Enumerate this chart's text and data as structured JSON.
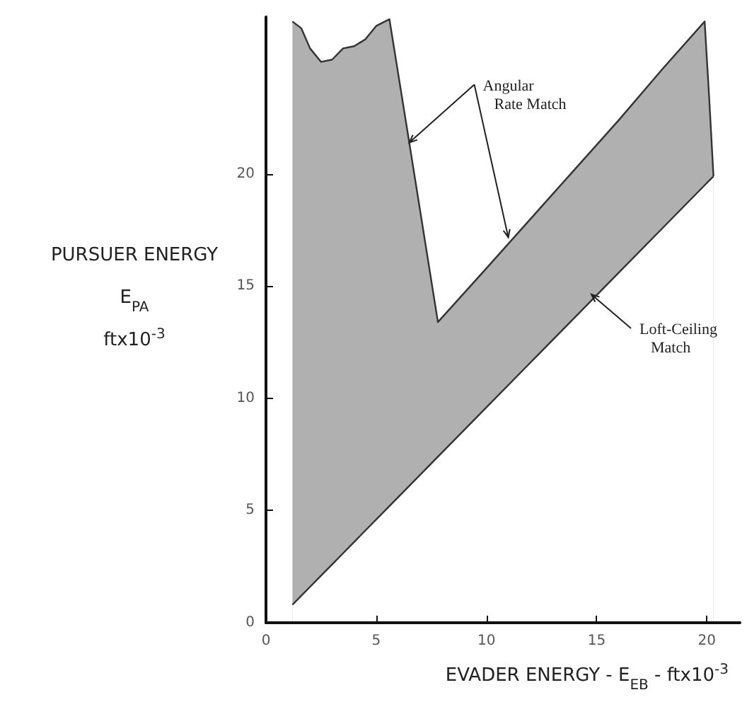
{
  "chart_data": {
    "type": "area",
    "xlabel": "EVADER  ENERGY - E$_{EB}$ - ftx10$^{-3}$",
    "ylabel": "PURSUER  ENERGY\nE$_{PA}$\nftx10$^{-3}$",
    "xlim": [
      0,
      21.5
    ],
    "ylim": [
      0,
      27
    ],
    "xticks": [
      0,
      5,
      10,
      15,
      20
    ],
    "yticks": [
      0,
      5,
      10,
      15,
      20
    ],
    "x": [
      1.2,
      1.6,
      2,
      2.5,
      3,
      3.5,
      4,
      4.5,
      5,
      5.6,
      6.5,
      7.8,
      10,
      12,
      14,
      16,
      18,
      19.9,
      20.1,
      20.3
    ],
    "series": [
      {
        "color": "#b0b0b0",
        "values": [
          26.8,
          26.5,
          25.6,
          25.0,
          25.1,
          25.6,
          25.7,
          26.0,
          26.6,
          26.9,
          21.4,
          13.4,
          15.8,
          18.0,
          20.2,
          22.4,
          24.7,
          26.8,
          23.5,
          19.9
        ]
      },
      {
        "color": "#ffffff",
        "values": [
          0.8,
          1.2,
          1.6,
          2.1,
          2.6,
          3.1,
          3.6,
          4.1,
          4.6,
          5.2,
          6.1,
          7.4,
          9.6,
          11.6,
          13.6,
          15.6,
          17.6,
          19.5,
          19.7,
          19.9
        ]
      }
    ],
    "annotations": [
      {
        "text": "Angular\nRate Match",
        "x": 6.5,
        "y": 21.4
      },
      "Loft-Ceiling\nMatch"
    ]
  }
}
